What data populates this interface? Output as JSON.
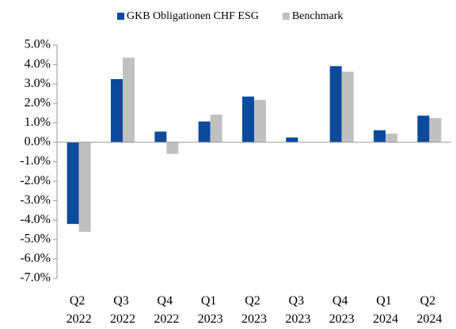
{
  "chart_data": {
    "type": "bar",
    "categories": [
      "Q2 2022",
      "Q3 2022",
      "Q4 2022",
      "Q1 2023",
      "Q2 2023",
      "Q3 2023",
      "Q4 2023",
      "Q1 2024",
      "Q2 2024"
    ],
    "series": [
      {
        "name": "GKB Obligationen CHF ESG",
        "color": "#0b4a9c",
        "values": [
          -4.2,
          3.25,
          0.55,
          1.07,
          2.35,
          0.25,
          3.92,
          0.62,
          1.37
        ]
      },
      {
        "name": "Benchmark",
        "color": "#c0c0c0",
        "values": [
          -4.6,
          4.35,
          -0.6,
          1.42,
          2.18,
          0,
          3.63,
          0.45,
          1.25
        ]
      }
    ],
    "ylim": [
      -7,
      5
    ],
    "yticks": [
      {
        "value": 5,
        "label": "5.0%"
      },
      {
        "value": 4,
        "label": "4.0%"
      },
      {
        "value": 3,
        "label": "3.0%"
      },
      {
        "value": 2,
        "label": "2.0%"
      },
      {
        "value": 1,
        "label": "1.0%"
      },
      {
        "value": 0,
        "label": "0.0%"
      },
      {
        "value": -1,
        "label": "-1.0%"
      },
      {
        "value": -2,
        "label": "-2.0%"
      },
      {
        "value": -3,
        "label": "-3.0%"
      },
      {
        "value": -4,
        "label": "-4.0%"
      },
      {
        "value": -5,
        "label": "-5.0%"
      },
      {
        "value": -6,
        "label": "-6.0%"
      },
      {
        "value": -7,
        "label": "-7.0%"
      }
    ],
    "legend": "top"
  }
}
